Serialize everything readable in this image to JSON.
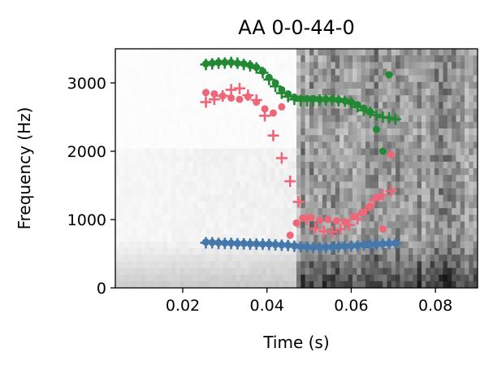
{
  "chart_data": {
    "type": "scatter",
    "title": "AA 0-0-44-0",
    "xlabel": "Time (s)",
    "ylabel": "Frequency (Hz)",
    "xlim": [
      0.004,
      0.09
    ],
    "ylim": [
      0,
      3500
    ],
    "xticks": [
      0.02,
      0.04,
      0.06,
      0.08
    ],
    "xtick_labels": [
      "0.02",
      "0.04",
      "0.06",
      "0.08"
    ],
    "yticks": [
      0,
      1000,
      2000,
      3000
    ],
    "ytick_labels": [
      "0",
      "1000",
      "2000",
      "3000"
    ],
    "grid": false,
    "background": "grayscale spectrogram",
    "series": [
      {
        "color": "#4477aa",
        "marker": "plus",
        "x": [
          0.0255,
          0.027,
          0.0285,
          0.03,
          0.0315,
          0.033,
          0.0345,
          0.036,
          0.0375,
          0.039,
          0.0405,
          0.042,
          0.0435,
          0.045,
          0.0465,
          0.048,
          0.0495,
          0.051,
          0.0525,
          0.054,
          0.0555,
          0.057,
          0.0585,
          0.06,
          0.0615,
          0.063,
          0.0645,
          0.066,
          0.0675,
          0.069,
          0.0705
        ],
        "y": [
          660,
          660,
          650,
          650,
          650,
          645,
          645,
          640,
          640,
          640,
          635,
          630,
          625,
          620,
          610,
          600,
          595,
          590,
          590,
          590,
          595,
          600,
          605,
          610,
          615,
          625,
          630,
          635,
          640,
          645,
          650
        ]
      },
      {
        "color": "#4477aa",
        "marker": "circle",
        "x": [
          0.0255,
          0.027,
          0.0285,
          0.03,
          0.0315,
          0.033,
          0.0345,
          0.036,
          0.0375,
          0.039,
          0.0405,
          0.042,
          0.0435,
          0.045,
          0.0465,
          0.048,
          0.0495,
          0.051,
          0.0525,
          0.054,
          0.0555,
          0.057,
          0.0585,
          0.06,
          0.0615,
          0.063,
          0.0645,
          0.066,
          0.0675,
          0.069,
          0.0705
        ],
        "y": [
          670,
          665,
          660,
          655,
          655,
          650,
          650,
          645,
          645,
          640,
          640,
          635,
          630,
          625,
          615,
          605,
          600,
          595,
          595,
          595,
          600,
          605,
          610,
          615,
          620,
          630,
          635,
          640,
          645,
          650,
          655
        ]
      },
      {
        "color": "#ee6677",
        "marker": "plus",
        "x": [
          0.0255,
          0.0275,
          0.0295,
          0.0315,
          0.0335,
          0.0355,
          0.0375,
          0.0395,
          0.0415,
          0.0435,
          0.0455,
          0.0475,
          0.0495,
          0.0515,
          0.0535,
          0.0555,
          0.0575,
          0.0595,
          0.0615,
          0.0635,
          0.0655,
          0.0675,
          0.0695
        ],
        "y": [
          2720,
          2760,
          2810,
          2900,
          2920,
          2820,
          2750,
          2520,
          2230,
          1900,
          1560,
          1260,
          1000,
          870,
          830,
          820,
          860,
          920,
          1010,
          1140,
          1290,
          1360,
          1420
        ]
      },
      {
        "color": "#ee6677",
        "marker": "circle",
        "x": [
          0.0255,
          0.0275,
          0.0295,
          0.0315,
          0.0335,
          0.0355,
          0.0375,
          0.0395,
          0.0415,
          0.0435,
          0.0455,
          0.047,
          0.0485,
          0.0505,
          0.0525,
          0.0545,
          0.0565,
          0.0585,
          0.0605,
          0.0625,
          0.0645,
          0.0665,
          0.0675,
          0.0695
        ],
        "y": [
          2860,
          2840,
          2810,
          2780,
          2760,
          2800,
          2720,
          2620,
          2560,
          2650,
          770,
          950,
          1020,
          1030,
          990,
          1000,
          980,
          970,
          1040,
          1100,
          1200,
          1330,
          860,
          1950
        ]
      },
      {
        "color": "#228833",
        "marker": "plus",
        "x": [
          0.0255,
          0.027,
          0.0285,
          0.03,
          0.0315,
          0.033,
          0.0345,
          0.036,
          0.0375,
          0.039,
          0.0405,
          0.042,
          0.0435,
          0.045,
          0.0465,
          0.048,
          0.0495,
          0.051,
          0.0525,
          0.054,
          0.0555,
          0.057,
          0.0585,
          0.06,
          0.0615,
          0.063,
          0.0645,
          0.066,
          0.0675,
          0.069,
          0.0705
        ],
        "y": [
          3270,
          3280,
          3290,
          3290,
          3300,
          3290,
          3270,
          3250,
          3220,
          3150,
          3050,
          2950,
          2850,
          2800,
          2760,
          2740,
          2740,
          2740,
          2750,
          2750,
          2750,
          2740,
          2730,
          2700,
          2650,
          2600,
          2570,
          2530,
          2500,
          2490,
          2470
        ]
      },
      {
        "color": "#228833",
        "marker": "circle",
        "x": [
          0.0255,
          0.027,
          0.0285,
          0.03,
          0.0315,
          0.033,
          0.0345,
          0.036,
          0.0375,
          0.039,
          0.0405,
          0.042,
          0.0435,
          0.045,
          0.0465,
          0.048,
          0.0495,
          0.051,
          0.0525,
          0.054,
          0.0555,
          0.057,
          0.0585,
          0.06,
          0.0615,
          0.063,
          0.0645,
          0.066,
          0.0675,
          0.069
        ],
        "y": [
          3280,
          3290,
          3300,
          3300,
          3300,
          3290,
          3280,
          3260,
          3230,
          3170,
          3080,
          3000,
          2900,
          2840,
          2790,
          2770,
          2770,
          2770,
          2760,
          2760,
          2760,
          2750,
          2740,
          2720,
          2680,
          2630,
          2580,
          2320,
          2000,
          3120
        ]
      }
    ]
  }
}
